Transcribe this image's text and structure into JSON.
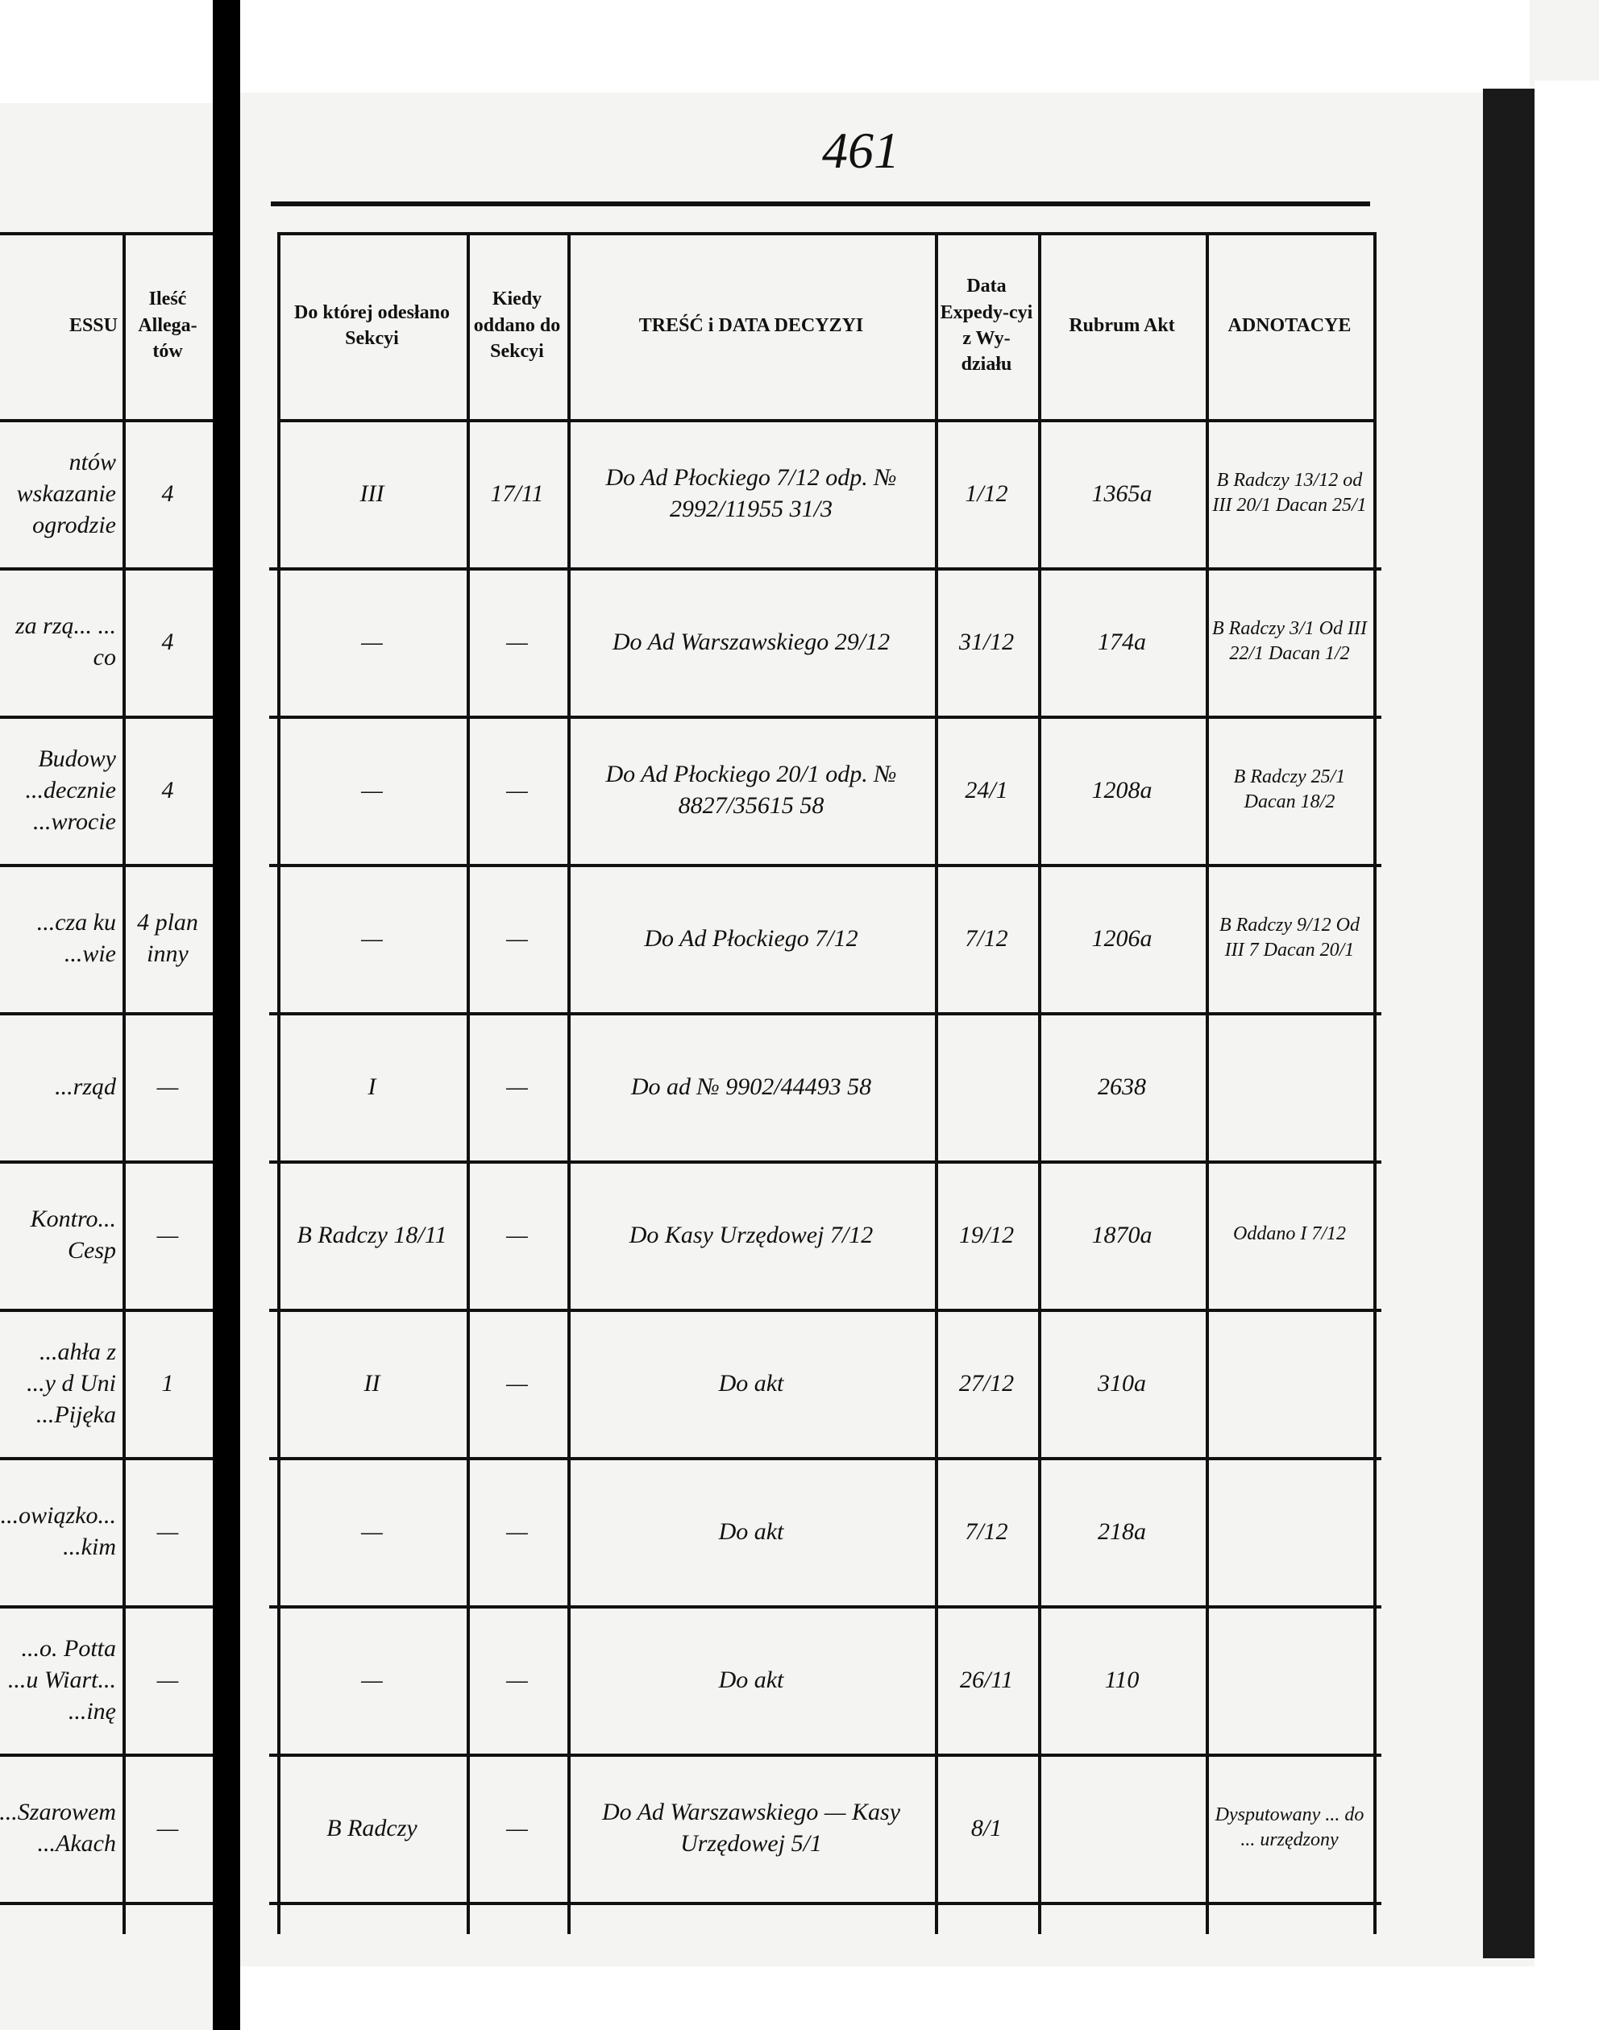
{
  "page_number": "461",
  "left_page": {
    "headers": [
      "ESSU",
      "Ileść Allega-tów"
    ],
    "rows": [
      [
        "ntów wskazanie ogrodzie",
        "4"
      ],
      [
        "za rzą... ... co",
        "4"
      ],
      [
        "Budowy ...decznie ...wrocie",
        "4"
      ],
      [
        "...cza ku ...wie",
        "4 plan inny"
      ],
      [
        "...rząd",
        "—"
      ],
      [
        "Kontro... Cesp",
        "—"
      ],
      [
        "...ahła z ...y d Uni ...Pijęka",
        "1"
      ],
      [
        "...owiązko... ...kim",
        "—"
      ],
      [
        "...o. Potta ...u Wiart... ...inę",
        "—"
      ],
      [
        "...Szarowem ...Akach",
        "—"
      ]
    ]
  },
  "table": {
    "headers": [
      "Do której odesłano Sekcyi",
      "Kiedy oddano do Sekcyi",
      "TREŚĆ i DATA DECYZYI",
      "Data Expedy-cyi z Wy-działu",
      "Rubrum Akt",
      "ADNOTACYE"
    ],
    "rows": [
      [
        "III",
        "17/11",
        "Do Ad Płockiego 7/12 odp. № 2992/11955 31/3",
        "1/12",
        "1365a",
        "B Radczy 13/12 od III 20/1 Dacan 25/1"
      ],
      [
        "—",
        "—",
        "Do Ad Warszawskiego 29/12",
        "31/12",
        "174a",
        "B Radczy 3/1 Od III 22/1 Dacan 1/2"
      ],
      [
        "—",
        "—",
        "Do Ad Płockiego 20/1 odp. № 8827/35615 58",
        "24/1",
        "1208a",
        "B Radczy 25/1 Dacan 18/2"
      ],
      [
        "—",
        "—",
        "Do Ad Płockiego 7/12",
        "7/12",
        "1206a",
        "B Radczy 9/12 Od III 7 Dacan 20/1"
      ],
      [
        "I",
        "—",
        "Do ad № 9902/44493 58",
        null,
        "2638",
        null
      ],
      [
        "B Radczy 18/11",
        "—",
        "Do Kasy Urzędowej 7/12",
        "19/12",
        "1870a",
        "Oddano I 7/12"
      ],
      [
        "II",
        "—",
        "Do akt",
        "27/12",
        "310a",
        null
      ],
      [
        "—",
        "—",
        "Do akt",
        "7/12",
        "218a",
        null
      ],
      [
        "—",
        "—",
        "Do akt",
        "26/11",
        "110",
        null
      ],
      [
        "B Radczy",
        "—",
        "Do Ad Warszawskiego — Kasy Urzędowej 5/1",
        "8/1",
        null,
        "Dysputowany ... do ... urzędzony"
      ]
    ]
  }
}
